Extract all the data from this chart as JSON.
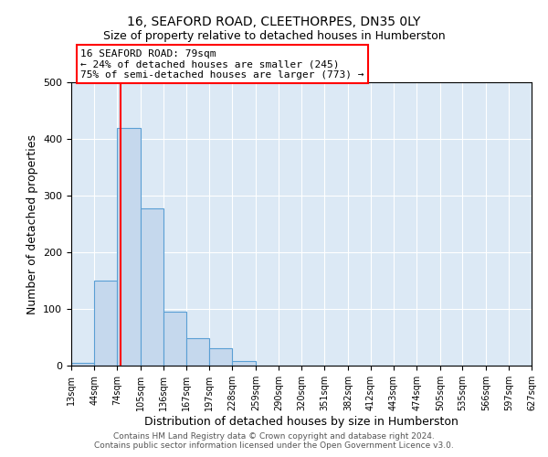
{
  "title": "16, SEAFORD ROAD, CLEETHORPES, DN35 0LY",
  "subtitle": "Size of property relative to detached houses in Humberston",
  "xlabel": "Distribution of detached houses by size in Humberston",
  "ylabel": "Number of detached properties",
  "bin_edges": [
    13,
    44,
    74,
    105,
    136,
    167,
    197,
    228,
    259,
    290,
    320,
    351,
    382,
    412,
    443,
    474,
    505,
    535,
    566,
    597,
    627
  ],
  "bar_heights": [
    5,
    150,
    420,
    278,
    95,
    48,
    30,
    8,
    0,
    0,
    0,
    0,
    0,
    0,
    0,
    0,
    0,
    0,
    0,
    0
  ],
  "bar_color": "#c5d8ed",
  "bar_edge_color": "#5a9fd4",
  "grid_color": "#ffffff",
  "bg_color": "#dce9f5",
  "red_line_x": 79,
  "annotation_line1": "16 SEAFORD ROAD: 79sqm",
  "annotation_line2": "← 24% of detached houses are smaller (245)",
  "annotation_line3": "75% of semi-detached houses are larger (773) →",
  "footer1": "Contains HM Land Registry data © Crown copyright and database right 2024.",
  "footer2": "Contains public sector information licensed under the Open Government Licence v3.0.",
  "title_fontsize": 10,
  "subtitle_fontsize": 9,
  "tick_labels": [
    "13sqm",
    "44sqm",
    "74sqm",
    "105sqm",
    "136sqm",
    "167sqm",
    "197sqm",
    "228sqm",
    "259sqm",
    "290sqm",
    "320sqm",
    "351sqm",
    "382sqm",
    "412sqm",
    "443sqm",
    "474sqm",
    "505sqm",
    "535sqm",
    "566sqm",
    "597sqm",
    "627sqm"
  ],
  "ylim": [
    0,
    500
  ]
}
